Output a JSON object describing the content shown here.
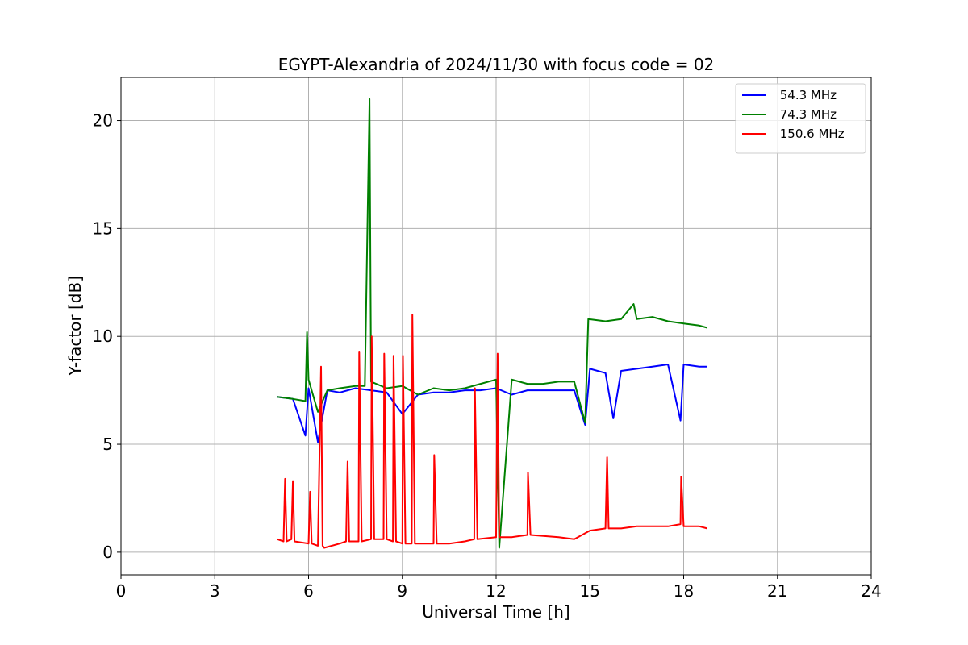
{
  "chart_data": {
    "type": "line",
    "title": "EGYPT-Alexandria of 2024/11/30 with focus code = 02",
    "xlabel": "Universal Time [h]",
    "ylabel": "Y-factor [dB]",
    "xlim": [
      0,
      24
    ],
    "ylim": [
      -1.05,
      22
    ],
    "xticks": [
      0,
      3,
      6,
      9,
      12,
      15,
      18,
      21,
      24
    ],
    "yticks": [
      0,
      5,
      10,
      15,
      20
    ],
    "grid": true,
    "legend_position": "top-right",
    "series": [
      {
        "name": " 54.3 MHz",
        "color": "#0000ff",
        "x": [
          5.0,
          5.5,
          5.9,
          6.0,
          6.3,
          6.6,
          7.0,
          7.5,
          8.0,
          8.5,
          9.0,
          9.5,
          10.0,
          10.5,
          11.0,
          11.5,
          12.0,
          12.5,
          13.0,
          13.5,
          14.0,
          14.5,
          14.85,
          15.0,
          15.5,
          15.75,
          16.0,
          16.5,
          17.0,
          17.5,
          17.9,
          18.0,
          18.5,
          18.75
        ],
        "y": [
          7.2,
          7.1,
          5.4,
          7.6,
          5.1,
          7.5,
          7.4,
          7.6,
          7.5,
          7.4,
          6.4,
          7.3,
          7.4,
          7.4,
          7.5,
          7.5,
          7.6,
          7.3,
          7.5,
          7.5,
          7.5,
          7.5,
          5.9,
          8.5,
          8.3,
          6.2,
          8.4,
          8.5,
          8.6,
          8.7,
          6.1,
          8.7,
          8.6,
          8.6
        ]
      },
      {
        "name": " 74.3 MHz",
        "color": "#008000",
        "x": [
          5.0,
          5.5,
          5.9,
          5.95,
          6.0,
          6.3,
          6.6,
          7.0,
          7.5,
          7.8,
          7.95,
          8.0,
          8.5,
          9.0,
          9.5,
          10.0,
          10.5,
          11.0,
          11.5,
          12.0,
          12.1,
          12.5,
          13.0,
          13.5,
          14.0,
          14.5,
          14.85,
          14.95,
          15.5,
          16.0,
          16.4,
          16.5,
          17.0,
          17.5,
          18.0,
          18.5,
          18.75
        ],
        "y": [
          7.2,
          7.1,
          7.0,
          10.2,
          8.0,
          6.5,
          7.5,
          7.6,
          7.7,
          7.7,
          21.0,
          7.9,
          7.6,
          7.7,
          7.3,
          7.6,
          7.5,
          7.6,
          7.8,
          8.0,
          0.2,
          8.0,
          7.8,
          7.8,
          7.9,
          7.9,
          6.0,
          10.8,
          10.7,
          10.8,
          11.5,
          10.8,
          10.9,
          10.7,
          10.6,
          10.5,
          10.4
        ]
      },
      {
        "name": " 150.6 MHz",
        "color": "#ff0000",
        "x": [
          5.0,
          5.2,
          5.25,
          5.3,
          5.45,
          5.5,
          5.55,
          6.0,
          6.05,
          6.1,
          6.3,
          6.4,
          6.45,
          6.5,
          7.0,
          7.2,
          7.25,
          7.3,
          7.6,
          7.62,
          7.7,
          8.0,
          8.02,
          8.1,
          8.4,
          8.42,
          8.5,
          8.7,
          8.72,
          8.8,
          9.0,
          9.02,
          9.1,
          9.3,
          9.32,
          9.4,
          10.0,
          10.02,
          10.1,
          10.5,
          11.0,
          11.3,
          11.32,
          11.4,
          12.0,
          12.05,
          12.1,
          12.5,
          13.0,
          13.02,
          13.1,
          14.0,
          14.5,
          15.0,
          15.5,
          15.55,
          15.6,
          16.0,
          16.5,
          17.0,
          17.5,
          17.9,
          17.92,
          18.0,
          18.5,
          18.75
        ],
        "y": [
          0.6,
          0.5,
          3.4,
          0.5,
          0.6,
          3.3,
          0.5,
          0.4,
          2.8,
          0.4,
          0.3,
          8.6,
          0.3,
          0.2,
          0.4,
          0.5,
          4.2,
          0.5,
          0.5,
          9.3,
          0.5,
          0.6,
          10.0,
          0.6,
          0.6,
          9.2,
          0.6,
          0.5,
          9.1,
          0.5,
          0.4,
          9.1,
          0.4,
          0.4,
          11.0,
          0.4,
          0.4,
          4.5,
          0.4,
          0.4,
          0.5,
          0.6,
          7.6,
          0.6,
          0.7,
          9.2,
          0.7,
          0.7,
          0.8,
          3.7,
          0.8,
          0.7,
          0.6,
          1.0,
          1.1,
          4.4,
          1.1,
          1.1,
          1.2,
          1.2,
          1.2,
          1.3,
          3.5,
          1.2,
          1.2,
          1.1
        ]
      }
    ]
  }
}
